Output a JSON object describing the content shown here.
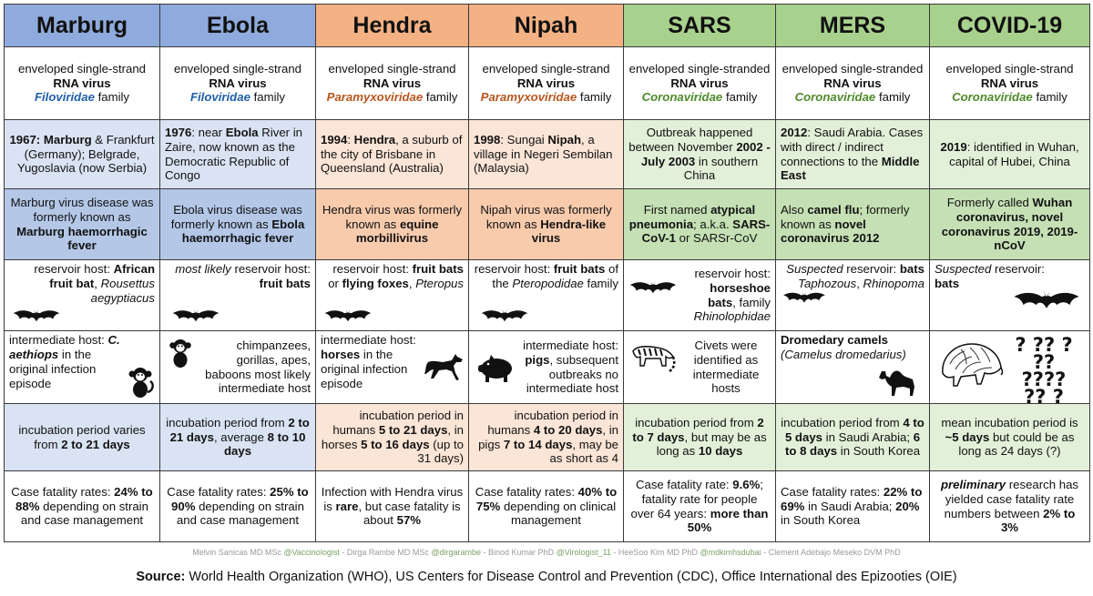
{
  "columns": [
    {
      "name": "Marburg",
      "family": "Filoviridae"
    },
    {
      "name": "Ebola",
      "family": "Filoviridae"
    },
    {
      "name": "Hendra",
      "family": "Paramyxoviridae"
    },
    {
      "name": "Nipah",
      "family": "Paramyxoviridae"
    },
    {
      "name": "SARS",
      "family": "Coronaviridae"
    },
    {
      "name": "MERS",
      "family": "Coronaviridae"
    },
    {
      "name": "COVID-19",
      "family": "Coronaviridae"
    }
  ],
  "virus_type": {
    "line1_a": "enveloped single-strand",
    "line1_b": "enveloped single-stranded",
    "rna_virus": "RNA virus",
    "family_word": "family"
  },
  "origin": {
    "marburg": {
      "year": "1967:",
      "place1": "Marburg",
      "rest1": " &",
      "rest2": "Frankfurt (Germany); Belgrade, Yugoslavia (now Serbia)"
    },
    "ebola": {
      "year": "1976",
      "t1": ": near ",
      "place": "Ebola",
      "t2": " River in Zaire, now known as the Democratic Republic of Congo"
    },
    "hendra": {
      "year": "1994",
      "t1": ": ",
      "place": "Hendra",
      "t2": ", a suburb of the city of Brisbane in Queensland (Australia)"
    },
    "nipah": {
      "year": "1998",
      "t1": ": Sungai ",
      "place": "Nipah",
      "t2": ", a village in Negeri Sembilan (Malaysia)"
    },
    "sars": {
      "t1": "Outbreak happened between November ",
      "dates": "2002 - July 2003",
      "t2": " in southern China"
    },
    "mers": {
      "year": "2012",
      "t1": ": Saudi Arabia. Cases with direct / indirect connections to the ",
      "place": "Middle East"
    },
    "covid": {
      "year": "2019",
      "t1": ": identified in Wuhan, capital of Hubei, China"
    }
  },
  "former_names": {
    "marburg": {
      "t1": "Marburg virus disease was formerly known as ",
      "b1": "Marburg haemorrhagic fever"
    },
    "ebola": {
      "t1": "Ebola virus disease was formerly known as ",
      "b1": "Ebola haemorrhagic fever"
    },
    "hendra": {
      "t1": "Hendra virus was formerly known as ",
      "b1": "equine morbillivirus"
    },
    "nipah": {
      "t1": "Nipah virus was formerly known as ",
      "b1": "Hendra-like virus"
    },
    "sars": {
      "t1": "First named ",
      "b1": "atypical pneumonia",
      "t2": "; a.k.a. ",
      "b2": "SARS-CoV-1",
      "t3": " or SARSr-CoV"
    },
    "mers": {
      "t1": "Also ",
      "b1": "camel flu",
      "t2": "; formerly known as ",
      "b2": "novel coronavirus 2012"
    },
    "covid": {
      "t1": "Formerly called ",
      "b1": "Wuhan coronavirus, novel coronavirus 2019, 2019-nCoV"
    }
  },
  "reservoir": {
    "marburg": {
      "t1": "reservoir host: ",
      "b1": "African fruit bat",
      "t2": ", ",
      "i1": "Rousettus aegyptiacus"
    },
    "ebola": {
      "i0": "most likely",
      "t1": " reservoir host: ",
      "b1": "fruit bats"
    },
    "hendra": {
      "t1": "reservoir host: ",
      "b1": "fruit bats",
      "t2": " or ",
      "b2": "flying foxes",
      "t3": ", ",
      "i1": "Pteropus"
    },
    "nipah": {
      "t1": "reservoir host: ",
      "b1": "fruit bats",
      "t2": " of the ",
      "i1": "Pteropodidae",
      "t3": " family"
    },
    "sars": {
      "t1": "reservoir host: ",
      "b1": "horseshoe bats",
      "t2": ", family ",
      "i1": "Rhinolophidae"
    },
    "mers": {
      "i0": "Suspected",
      "t1": " reservoir: ",
      "b1": "bats",
      "t2": " ",
      "i1": "Taphozous",
      "t3": ", ",
      "i2": "Rhinopoma"
    },
    "covid": {
      "i0": "Suspected",
      "t1": " reservoir: ",
      "b1": "bats"
    }
  },
  "intermediate": {
    "marburg": {
      "t1": "intermediate host: ",
      "b1": "C. aethiops",
      "t2": " in the original infection episode"
    },
    "ebola": {
      "t1": "chimpanzees, gorillas, apes, baboons most likely intermediate host"
    },
    "hendra": {
      "t1": "intermediate host: ",
      "b1": "horses",
      "t2": " in the original infection episode"
    },
    "nipah": {
      "t1": "intermediate host: ",
      "b1": "pigs",
      "t2": ", subsequent outbreaks no intermediate host"
    },
    "sars": {
      "t1": "Civets were identified as intermediate hosts"
    },
    "mers": {
      "b1": "Dromedary camels",
      "i1": "(Camelus dromedarius)"
    },
    "covid": {
      "marks": "? ?? ? ?? ???? ?? ? ???"
    }
  },
  "incubation": {
    "marburg": {
      "t1": "incubation period varies from ",
      "b1": "2 to 21 days"
    },
    "ebola": {
      "t1": "incubation period from ",
      "b1": "2 to 21 days",
      "t2": ", average ",
      "b2": "8 to 10 days"
    },
    "hendra": {
      "t1": "incubation period in humans ",
      "b1": "5 to 21 days",
      "t2": ", in horses ",
      "b2": "5 to 16 days",
      "t3": " (up to 31 days)"
    },
    "nipah": {
      "t1": "incubation period in humans ",
      "b1": "4 to 20 days",
      "t2": ", in pigs ",
      "b2": "7 to 14 days",
      "t3": ", may be as short as 4"
    },
    "sars": {
      "t1": "incubation period from ",
      "b1": "2 to 7 days",
      "t2": ", but may be as long as ",
      "b2": "10 days"
    },
    "mers": {
      "t1": "incubation period from ",
      "b1": "4 to 5 days",
      "t2": " in Saudi Arabia; ",
      "b2": "6 to 8 days",
      "t3": " in South Korea"
    },
    "covid": {
      "t1": "mean incubation period is ",
      "b1": "~5 days",
      "t2": " but could be as long as 24 days (?)"
    }
  },
  "fatality": {
    "marburg": {
      "t1": "Case fatality rates: ",
      "b1": "24% to 88%",
      "t2": " depending on strain and case management"
    },
    "ebola": {
      "t1": "Case fatality rates: ",
      "b1": "25% to 90%",
      "t2": " depending on strain and case management"
    },
    "hendra": {
      "t1": "Infection with Hendra virus is ",
      "b1": "rare",
      "t2": ", but case fatality is about ",
      "b2": "57%"
    },
    "nipah": {
      "t1": "Case fatality rates: ",
      "b1": "40% to 75%",
      "t2": " depending on clinical management"
    },
    "sars": {
      "t1": "Case fatality rate: ",
      "b1": "9.6%",
      "t2": "; fatality rate for people over 64 years: ",
      "b2": "more than 50%"
    },
    "mers": {
      "t1": "Case fatality rates: ",
      "b1": "22% to 69%",
      "t2": " in Saudi Arabia; ",
      "b2": "20%",
      "t3": " in South Korea"
    },
    "covid": {
      "i1": "preliminary",
      "t1": " research has yielded case fatality rate numbers between ",
      "b1": "2% to 3%"
    }
  },
  "credits": {
    "p1": "Melvin Sanicas MD MSc ",
    "h1": "@Vaccinologist",
    "p2": " - Dirga Rambe MD MSc ",
    "h2": "@dirgarambe",
    "p3": " - Binod Kumar PhD ",
    "h3": "@Virologist_11",
    "p4": " - HeeSoo Kim MD PhD ",
    "h4": "@mdkimhsdubai",
    "p5": " - Clement Adebajo Meseko DVM PhD"
  },
  "source": {
    "label": "Source:",
    "text": " World Health Organization (WHO), US Centers for Disease Control and Prevention (CDC), Office International des Epizooties (OIE)"
  },
  "colors": {
    "filo": "#1f5fa8",
    "para": "#b8561e",
    "corona": "#4e8a2a",
    "blue_header": "#8faadc",
    "orange_header": "#f4b183",
    "green_header": "#a9d18e"
  }
}
